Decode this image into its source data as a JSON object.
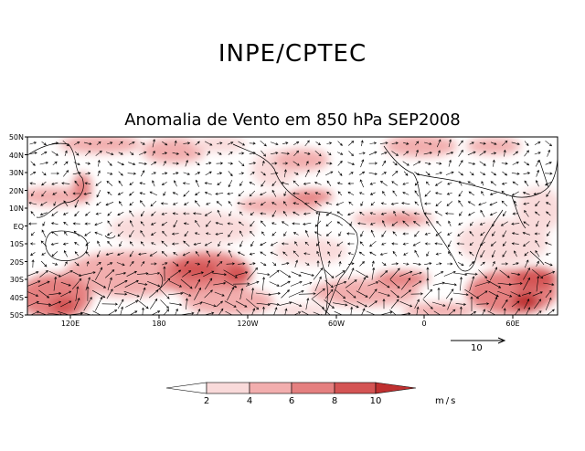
{
  "header": {
    "title": "INPE/CPTEC"
  },
  "map": {
    "title": "Anomalia de Vento em 850 hPa SEP2008",
    "lat_labels": [
      "50N",
      "40N",
      "30N",
      "20N",
      "10N",
      "EQ",
      "10S",
      "20S",
      "30S",
      "40S",
      "50S"
    ],
    "lon_labels": [
      "120E",
      "180",
      "120W",
      "60W",
      "0",
      "60E"
    ],
    "reference_vector": {
      "label": "10"
    }
  },
  "colorbar": {
    "labels": [
      "2",
      "4",
      "6",
      "8",
      "10"
    ],
    "colors": [
      "#ffffff",
      "#f9dada",
      "#f2aeae",
      "#e58080",
      "#d45454",
      "#bf3030"
    ],
    "units": "m/s"
  }
}
